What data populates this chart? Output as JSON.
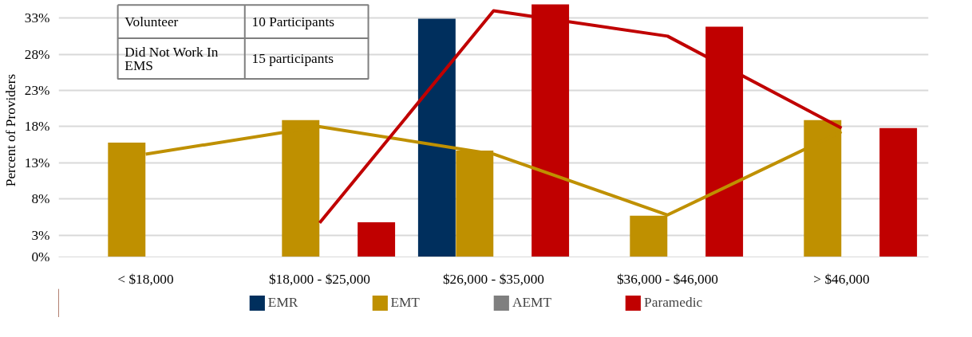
{
  "chart_data": {
    "type": "bar",
    "ylabel": "Percent of Providers",
    "categories": [
      "< $18,000",
      "$18,000 - $25,000",
      "$26,000 - $35,000",
      "$36,000 - $46,000",
      "> $46,000"
    ],
    "series": [
      {
        "name": "EMR",
        "color": "#002f5d",
        "values": [
          0,
          0,
          32.9,
          0,
          0
        ]
      },
      {
        "name": "EMT",
        "color": "#bf9000",
        "values": [
          15.8,
          18.9,
          14.7,
          5.7,
          18.9
        ]
      },
      {
        "name": "AEMT",
        "color": "#7f7f7f",
        "values": [
          0,
          0,
          0,
          0,
          0
        ]
      },
      {
        "name": "Paramedic",
        "color": "#c00000",
        "values": [
          0,
          4.8,
          34.9,
          31.8,
          17.8
        ]
      },
      {
        "type": "line",
        "color": "#bf9000",
        "values": [
          14.2,
          18.0,
          14.2,
          5.8,
          17.3
        ]
      },
      {
        "type": "line",
        "color": "#c00000",
        "values": [
          null,
          4.7,
          34.0,
          30.5,
          17.8
        ]
      }
    ],
    "ylim": [
      0,
      35
    ],
    "yticks": [
      {
        "value": 0,
        "label": "0%"
      },
      {
        "value": 3,
        "label": "3%"
      },
      {
        "value": 8,
        "label": "8%"
      },
      {
        "value": 13,
        "label": "13%"
      },
      {
        "value": 18,
        "label": "18%"
      },
      {
        "value": 23,
        "label": "23%"
      },
      {
        "value": 28,
        "label": "28%"
      },
      {
        "value": 33,
        "label": "33%"
      }
    ],
    "grid": "y",
    "legend": "bottom",
    "annotations": [
      "Volunteer",
      "10 Participants",
      "Did Not Work In EMS",
      "15 participants"
    ]
  }
}
